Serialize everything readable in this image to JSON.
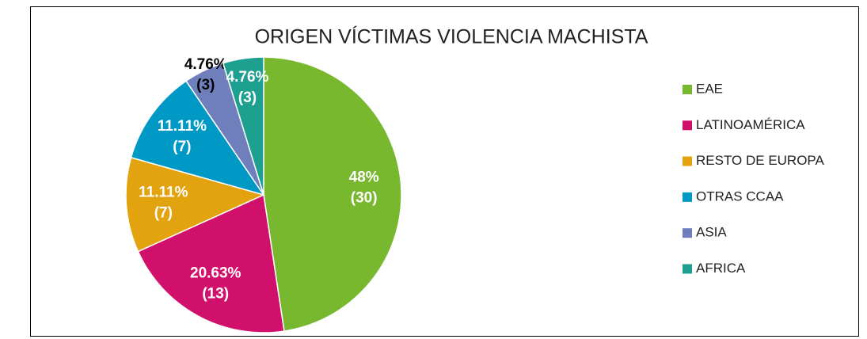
{
  "chart_data": {
    "type": "pie",
    "title": "ORIGEN VÍCTIMAS VIOLENCIA MACHISTA",
    "categories": [
      "EAE",
      "LATINOAMÉRICA",
      "RESTO DE EUROPA",
      "OTRAS CCAA",
      "ASIA",
      "AFRICA"
    ],
    "values": [
      30,
      13,
      7,
      7,
      3,
      3
    ],
    "value_labels": [
      "(30)",
      "(13)",
      "(7)",
      "(7)",
      "(3)",
      "(3)"
    ],
    "percentages": [
      48,
      20.63,
      11.11,
      11.11,
      4.76,
      4.76
    ],
    "percentage_labels": [
      "48%",
      "20.63%",
      "11.11%",
      "11.11%",
      "4.76%",
      "4.76%"
    ],
    "colors": [
      "#77b82f",
      "#d0106b",
      "#e3a30f",
      "#0099c6",
      "#6f7fbb",
      "#1ea091"
    ],
    "label_colors": [
      "#ffffff",
      "#ffffff",
      "#ffffff",
      "#ffffff",
      "#000000",
      "#ffffff"
    ],
    "legend": "right"
  }
}
